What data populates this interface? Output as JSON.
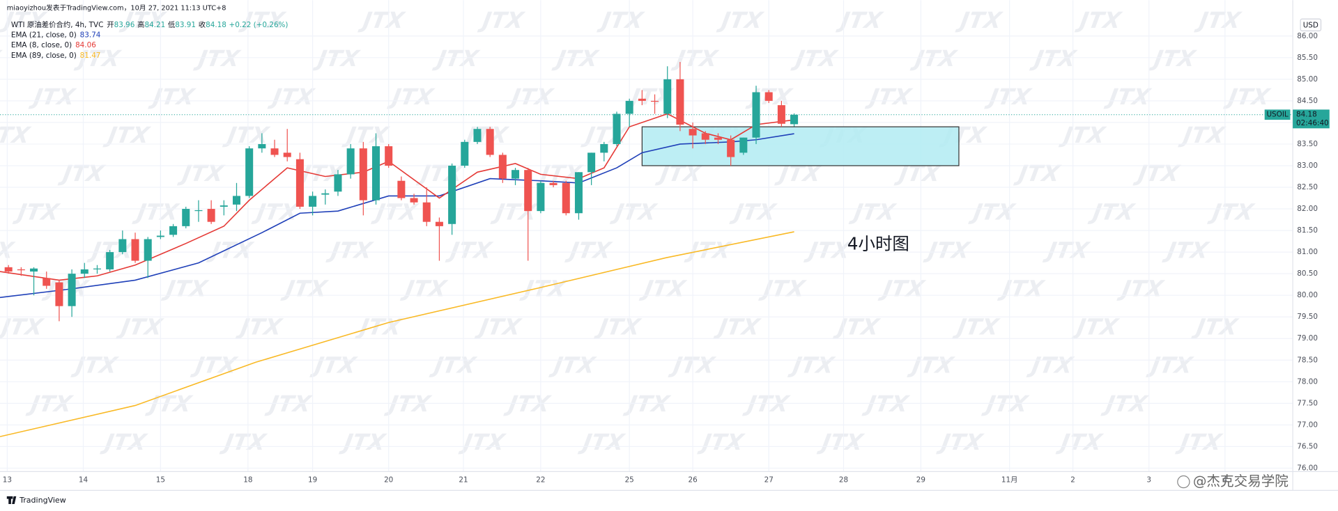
{
  "header": {
    "author_line": "miaoyizhou发表于TradingView.com，10月 27, 2021 11:13 UTC+8",
    "symbol": "WTI 原油差价合约, 4h, TVC",
    "ohlc": [
      "开",
      "83.96",
      "高",
      "84.21",
      "低",
      "83.91",
      "收",
      "84.18"
    ],
    "change": "+0.22 (+0.26%)"
  },
  "watermark": "JTX",
  "footer": {
    "brand": "TradingView",
    "credit": "@杰克交易学院"
  },
  "chart_data": {
    "type": "candlestick",
    "currency": "USD",
    "grid": true,
    "up_color": "#26a69a",
    "down_color": "#ef5350",
    "xlim": [
      -0.67,
      101.35
    ],
    "ylim": [
      75.92,
      86.83
    ],
    "xticks": [
      {
        "value": -0.1,
        "label": "13"
      },
      {
        "value": 5.9,
        "label": "14"
      },
      {
        "value": 12,
        "label": "15"
      },
      {
        "value": 18.9,
        "label": "18"
      },
      {
        "value": 24,
        "label": "19"
      },
      {
        "value": 30,
        "label": "20"
      },
      {
        "value": 35.9,
        "label": "21"
      },
      {
        "value": 42,
        "label": "22"
      },
      {
        "value": 49,
        "label": "25"
      },
      {
        "value": 54,
        "label": "26"
      },
      {
        "value": 60,
        "label": "27"
      },
      {
        "value": 65.9,
        "label": "28"
      },
      {
        "value": 72,
        "label": "29"
      },
      {
        "value": 79,
        "label": "11月"
      },
      {
        "value": 84,
        "label": "2"
      },
      {
        "value": 90,
        "label": "3"
      },
      {
        "value": 96,
        "label": "4"
      }
    ],
    "yticks": [
      {
        "value": 76,
        "label": "76.00"
      },
      {
        "value": 76.5,
        "label": "76.50"
      },
      {
        "value": 77,
        "label": "77.00"
      },
      {
        "value": 77.5,
        "label": "77.50"
      },
      {
        "value": 78,
        "label": "78.00"
      },
      {
        "value": 78.5,
        "label": "78.50"
      },
      {
        "value": 79,
        "label": "79.00"
      },
      {
        "value": 79.5,
        "label": "79.50"
      },
      {
        "value": 80,
        "label": "80.00"
      },
      {
        "value": 80.5,
        "label": "80.50"
      },
      {
        "value": 81,
        "label": "81.00"
      },
      {
        "value": 81.5,
        "label": "81.50"
      },
      {
        "value": 82,
        "label": "82.00"
      },
      {
        "value": 82.5,
        "label": "82.50"
      },
      {
        "value": 83,
        "label": "83.00"
      },
      {
        "value": 83.5,
        "label": "83.50"
      },
      {
        "value": 84,
        "label": "84.00"
      },
      {
        "value": 84.5,
        "label": "84.50"
      },
      {
        "value": 85,
        "label": "85.00"
      },
      {
        "value": 85.5,
        "label": "85.50"
      },
      {
        "value": 86,
        "label": "86.00"
      }
    ],
    "x": [
      0,
      1,
      2,
      3,
      4,
      5,
      6,
      7,
      8,
      9,
      10,
      11,
      12,
      13,
      14,
      15,
      16,
      17,
      18,
      19,
      20,
      21,
      22,
      23,
      24,
      25,
      26,
      27,
      28,
      29,
      30,
      31,
      32,
      33,
      34,
      35,
      36,
      37,
      38,
      39,
      40,
      41,
      42,
      43,
      44,
      45,
      46,
      47,
      48,
      49,
      50,
      51,
      52,
      53,
      54,
      55,
      56,
      57,
      58,
      59,
      60,
      61,
      62
    ],
    "open": [
      80.65,
      80.6,
      80.55,
      80.4,
      80.3,
      79.75,
      80.5,
      80.6,
      80.6,
      81.0,
      81.3,
      80.8,
      81.35,
      81.4,
      81.6,
      81.95,
      82.0,
      82.05,
      82.1,
      82.3,
      83.4,
      83.4,
      83.3,
      83.15,
      82.05,
      82.33,
      82.4,
      82.8,
      83.4,
      82.2,
      83.45,
      82.65,
      82.25,
      82.15,
      81.7,
      81.65,
      83.0,
      83.55,
      83.85,
      83.25,
      82.7,
      82.9,
      81.95,
      82.6,
      82.6,
      81.9,
      82.85,
      83.3,
      83.5,
      84.2,
      84.55,
      84.5,
      84.2,
      85.0,
      83.85,
      83.75,
      83.65,
      83.6,
      83.3,
      83.65,
      84.7,
      84.4,
      83.96
    ],
    "high": [
      80.7,
      80.65,
      80.65,
      80.55,
      80.35,
      80.6,
      80.75,
      80.7,
      81.05,
      81.5,
      81.45,
      81.35,
      81.5,
      81.65,
      82.05,
      82.2,
      82.2,
      82.2,
      82.6,
      83.45,
      83.75,
      83.6,
      83.85,
      83.3,
      82.4,
      82.45,
      82.9,
      83.5,
      83.55,
      83.75,
      83.5,
      82.75,
      82.35,
      82.5,
      81.8,
      83.05,
      83.6,
      83.9,
      83.9,
      83.3,
      82.95,
      82.95,
      82.65,
      82.65,
      82.65,
      82.85,
      83.3,
      83.55,
      84.25,
      84.55,
      84.75,
      84.65,
      85.3,
      85.4,
      84.0,
      83.8,
      83.75,
      83.7,
      83.65,
      84.85,
      84.75,
      84.5,
      84.21
    ],
    "low": [
      80.5,
      80.45,
      80.0,
      80.15,
      79.4,
      79.5,
      80.4,
      80.5,
      80.55,
      80.95,
      80.75,
      80.4,
      81.3,
      81.35,
      81.55,
      81.7,
      81.65,
      81.85,
      81.95,
      82.25,
      83.3,
      83.2,
      83.1,
      82.0,
      81.85,
      82.1,
      82.3,
      82.7,
      81.85,
      82.1,
      82.95,
      82.2,
      82.1,
      81.6,
      80.8,
      81.4,
      82.95,
      83.5,
      83.2,
      82.6,
      82.55,
      80.8,
      81.9,
      82.5,
      81.85,
      81.75,
      82.55,
      83.1,
      83.45,
      83.9,
      84.4,
      84.2,
      84.1,
      83.8,
      83.4,
      83.5,
      83.5,
      83.0,
      83.25,
      83.5,
      84.45,
      83.9,
      83.91
    ],
    "close": [
      80.55,
      80.58,
      80.62,
      80.22,
      79.75,
      80.5,
      80.6,
      80.62,
      81.0,
      81.3,
      80.8,
      81.3,
      81.38,
      81.6,
      82.0,
      81.97,
      81.7,
      82.08,
      82.3,
      83.4,
      83.5,
      83.25,
      83.2,
      82.05,
      82.3,
      82.36,
      82.8,
      83.4,
      82.2,
      83.45,
      83.0,
      82.25,
      82.15,
      81.7,
      81.6,
      83.0,
      83.55,
      83.85,
      83.25,
      82.7,
      82.9,
      81.95,
      82.6,
      82.55,
      81.9,
      82.85,
      83.3,
      83.5,
      84.2,
      84.5,
      84.5,
      84.48,
      85.0,
      83.95,
      83.7,
      83.6,
      83.6,
      83.2,
      83.65,
      84.7,
      84.5,
      83.97,
      84.18
    ],
    "lines": [
      {
        "name": "EMA (21, close, 0)",
        "legend_value": "83.74",
        "color": "#1e3fb8",
        "x": [
          -0.67,
          5,
          10,
          15,
          20,
          23,
          26,
          30,
          34,
          38,
          42,
          45,
          48,
          50,
          53,
          57,
          59,
          62
        ],
        "values": [
          79.95,
          80.15,
          80.35,
          80.75,
          81.45,
          81.9,
          81.95,
          82.3,
          82.3,
          82.7,
          82.65,
          82.6,
          82.95,
          83.3,
          83.5,
          83.55,
          83.6,
          83.74
        ]
      },
      {
        "name": "EMA (8, close, 0)",
        "legend_value": "84.06",
        "color": "#e53935",
        "x": [
          -0.67,
          4,
          7,
          10,
          14,
          17,
          19,
          22,
          25,
          28,
          30,
          34,
          37,
          40,
          42,
          45,
          47,
          49,
          52,
          55,
          57,
          59,
          62
        ],
        "values": [
          80.55,
          80.35,
          80.45,
          80.7,
          81.2,
          81.6,
          82.2,
          82.95,
          82.75,
          82.85,
          83.1,
          82.25,
          82.85,
          83.05,
          82.8,
          82.7,
          82.95,
          83.9,
          84.2,
          83.75,
          83.6,
          83.95,
          84.06
        ]
      },
      {
        "name": "EMA (89, close, 0)",
        "legend_value": "81.47",
        "color": "#f9b925",
        "x": [
          -0.67,
          10,
          19.5,
          30,
          41.7,
          51.9,
          62
        ],
        "values": [
          76.73,
          77.45,
          78.45,
          79.37,
          80.16,
          80.87,
          81.47
        ]
      }
    ],
    "zones": [
      {
        "x": [
          50,
          75
        ],
        "y": [
          83.0,
          83.9
        ]
      }
    ],
    "annotations": [
      {
        "text": "4小时图"
      }
    ],
    "price_line": {
      "symbol": "USOIL",
      "value": 84.18,
      "countdown": "02:46:40"
    }
  }
}
